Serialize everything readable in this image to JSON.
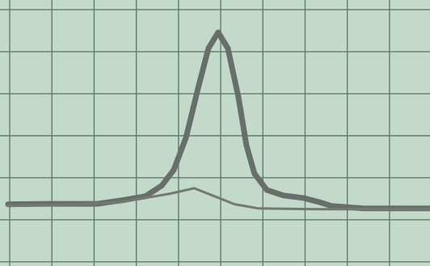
{
  "chart_data": {
    "type": "line",
    "grid": true,
    "background": "#c3dacb",
    "grid_color": "#5f7c6c",
    "xlim": [
      -0.23,
      9.96
    ],
    "xticks": [
      0,
      1,
      2,
      3,
      4,
      5,
      6,
      7,
      8,
      9
    ],
    "ylim": [
      -0.1,
      6.23
    ],
    "yticks": [
      0,
      1,
      2,
      3,
      4,
      5,
      6
    ],
    "series": [
      {
        "color": "#686f6a",
        "x": [
          -0.04,
          0.92,
          2.07,
          2.64,
          3.22,
          3.6,
          3.89,
          4.18,
          4.46,
          4.71,
          4.94,
          5.17,
          5.42,
          5.61,
          5.8,
          6.09,
          6.48,
          6.95,
          7.34,
          7.62,
          8.39,
          9.96
        ],
        "values": [
          1.37,
          1.38,
          1.38,
          1.46,
          1.56,
          1.81,
          2.19,
          2.96,
          4.12,
          5.08,
          5.46,
          5.08,
          3.92,
          2.77,
          2.1,
          1.71,
          1.58,
          1.52,
          1.42,
          1.33,
          1.27,
          1.27
        ]
      },
      {
        "color": "#737873",
        "x": [
          -0.04,
          1.69,
          2.64,
          3.22,
          3.79,
          4.37,
          4.85,
          5.33,
          5.9,
          7.43,
          9.96
        ],
        "values": [
          1.33,
          1.37,
          1.42,
          1.52,
          1.62,
          1.75,
          1.56,
          1.37,
          1.27,
          1.25,
          1.25
        ]
      }
    ]
  }
}
